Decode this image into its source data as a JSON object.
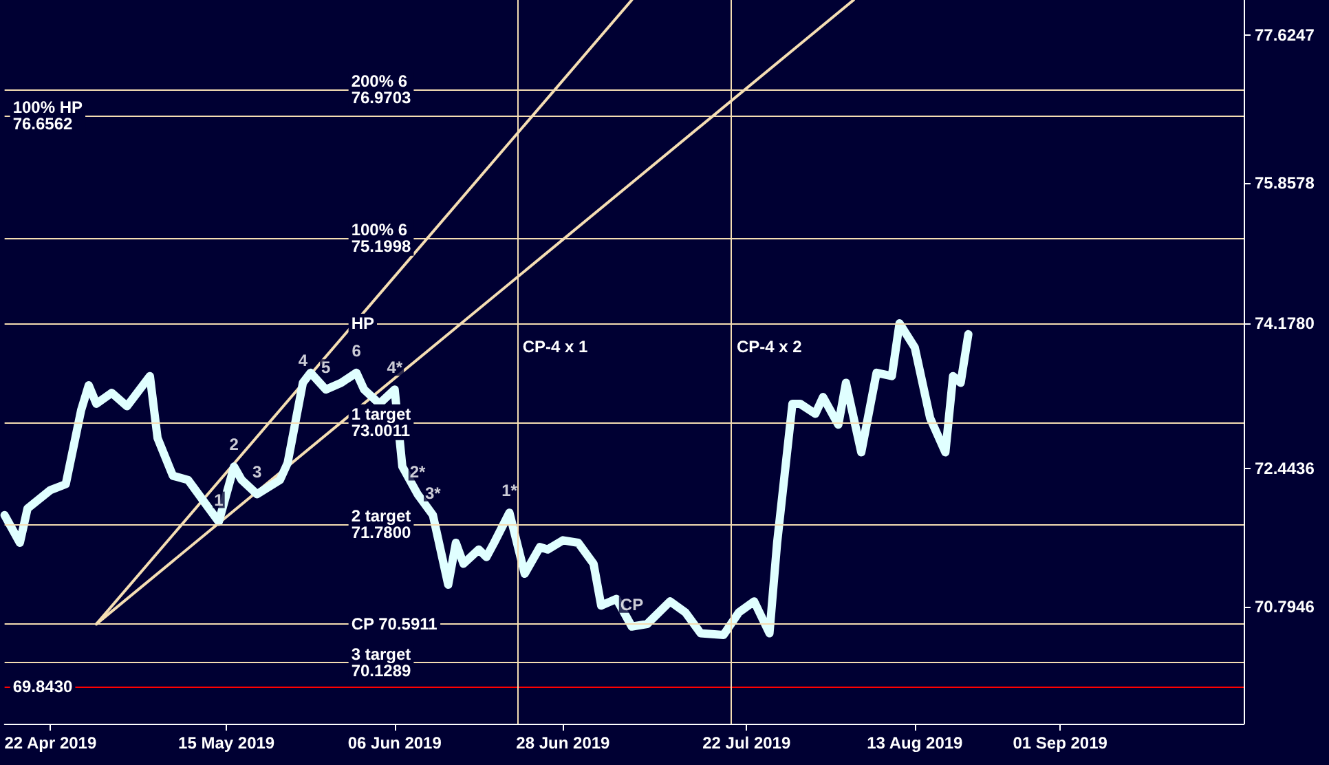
{
  "chart_data": {
    "type": "line",
    "xlim": [
      "2019-04-16",
      "2019-09-25"
    ],
    "xticks": [
      {
        "value": "2019-04-22",
        "label": "22 Apr 2019"
      },
      {
        "value": "2019-05-15",
        "label": "15 May 2019"
      },
      {
        "value": "2019-06-06",
        "label": "06 Jun 2019"
      },
      {
        "value": "2019-06-28",
        "label": "28 Jun 2019"
      },
      {
        "value": "2019-07-22",
        "label": "22 Jul 2019"
      },
      {
        "value": "2019-08-13",
        "label": "13 Aug 2019"
      },
      {
        "value": "2019-09-01",
        "label": "01 Sep 2019"
      }
    ],
    "ylim": [
      69.4,
      78.04
    ],
    "yticks": [
      {
        "value": 70.7946,
        "label": "70.7946"
      },
      {
        "value": 72.4436,
        "label": "72.4436"
      },
      {
        "value": 74.178,
        "label": "74.1780"
      },
      {
        "value": 75.8578,
        "label": "75.8578"
      },
      {
        "value": 77.6247,
        "label": "77.6247"
      }
    ],
    "grid": false,
    "marker": "none",
    "line_style": "solid",
    "series": [
      {
        "color": "#e0ffff",
        "x": [
          "2019-04-16",
          "2019-04-18",
          "2019-04-19",
          "2019-04-22",
          "2019-04-24",
          "2019-04-26",
          "2019-04-27",
          "2019-04-28",
          "2019-04-30",
          "2019-05-02",
          "2019-05-05",
          "2019-05-06",
          "2019-05-08",
          "2019-05-10",
          "2019-05-12",
          "2019-05-14",
          "2019-05-16",
          "2019-05-17",
          "2019-05-19",
          "2019-05-22",
          "2019-05-23",
          "2019-05-25",
          "2019-05-26",
          "2019-05-28",
          "2019-05-30",
          "2019-06-01",
          "2019-06-02",
          "2019-06-04",
          "2019-06-06",
          "2019-06-07",
          "2019-06-09",
          "2019-06-11",
          "2019-06-13",
          "2019-06-14",
          "2019-06-15",
          "2019-06-17",
          "2019-06-18",
          "2019-06-19",
          "2019-06-21",
          "2019-06-23",
          "2019-06-25",
          "2019-06-26",
          "2019-06-28",
          "2019-06-30",
          "2019-07-02",
          "2019-07-03",
          "2019-07-05",
          "2019-07-07",
          "2019-07-09",
          "2019-07-12",
          "2019-07-14",
          "2019-07-16",
          "2019-07-19",
          "2019-07-21",
          "2019-07-23",
          "2019-07-25",
          "2019-07-26",
          "2019-07-28",
          "2019-07-29",
          "2019-07-31",
          "2019-08-01",
          "2019-08-03",
          "2019-08-04",
          "2019-08-06",
          "2019-08-08",
          "2019-08-10",
          "2019-08-11",
          "2019-08-13",
          "2019-08-15",
          "2019-08-17",
          "2019-08-18",
          "2019-08-19",
          "2019-08-20"
        ],
        "values": [
          71.89,
          71.56,
          71.97,
          72.19,
          72.26,
          73.14,
          73.44,
          73.22,
          73.35,
          73.19,
          73.55,
          72.81,
          72.36,
          72.31,
          72.06,
          71.81,
          72.47,
          72.31,
          72.14,
          72.31,
          72.51,
          73.47,
          73.59,
          73.39,
          73.47,
          73.59,
          73.39,
          73.22,
          73.39,
          72.47,
          72.14,
          71.89,
          71.06,
          71.56,
          71.31,
          71.48,
          71.39,
          71.56,
          71.92,
          71.19,
          71.51,
          71.48,
          71.59,
          71.56,
          71.31,
          70.81,
          70.89,
          70.56,
          70.59,
          70.86,
          70.73,
          70.48,
          70.46,
          70.73,
          70.86,
          70.48,
          71.56,
          73.22,
          73.22,
          73.1,
          73.3,
          72.97,
          73.47,
          72.64,
          73.59,
          73.55,
          74.18,
          73.89,
          73.05,
          72.64,
          73.55,
          73.47,
          74.05
        ]
      },
      {
        "color": "#f5deb3",
        "x": [
          "2019-04-28",
          "2019-07-07"
        ],
        "values": [
          70.59,
          78.04
        ]
      },
      {
        "color": "#f5deb3",
        "x": [
          "2019-04-28",
          "2019-08-05"
        ],
        "values": [
          70.59,
          78.04
        ]
      }
    ],
    "ref_lines": [
      {
        "axis": "y",
        "value": 76.9703,
        "label": "200% 6\n76.9703",
        "color": "#f5deb3"
      },
      {
        "axis": "y",
        "value": 76.6562,
        "label": "100% HP\n76.6562",
        "color": "#f5deb3"
      },
      {
        "axis": "y",
        "value": 75.1998,
        "label": "100% 6\n75.1998",
        "color": "#f5deb3"
      },
      {
        "axis": "y",
        "value": 74.178,
        "label": "HP",
        "color": "#f5deb3"
      },
      {
        "axis": "y",
        "value": 73.0011,
        "label": "1 target\n73.0011",
        "color": "#f5deb3"
      },
      {
        "axis": "y",
        "value": 71.78,
        "label": "2 target\n71.7800",
        "color": "#f5deb3"
      },
      {
        "axis": "y",
        "value": 70.5911,
        "label": "CP 70.5911",
        "color": "#f5deb3"
      },
      {
        "axis": "y",
        "value": 70.1289,
        "label": "3 target\n70.1289",
        "color": "#f5deb3"
      },
      {
        "axis": "y",
        "value": 69.843,
        "label": "69.8430",
        "color": "#ff0000"
      },
      {
        "axis": "x",
        "value": "2019-06-22",
        "label": "CP-4 x 1",
        "color": "#f5deb3"
      },
      {
        "axis": "x",
        "value": "2019-07-20",
        "label": "CP-4 x 2",
        "color": "#f5deb3"
      }
    ],
    "annotations": [
      {
        "text": "1",
        "x": "2019-05-14",
        "y": 71.81
      },
      {
        "text": "2",
        "x": "2019-05-16",
        "y": 72.47
      },
      {
        "text": "3",
        "x": "2019-05-19",
        "y": 72.14
      },
      {
        "text": "4",
        "x": "2019-05-25",
        "y": 73.47
      },
      {
        "text": "5",
        "x": "2019-05-28",
        "y": 73.39
      },
      {
        "text": "6",
        "x": "2019-06-01",
        "y": 73.59
      },
      {
        "text": "4*",
        "x": "2019-06-06",
        "y": 73.39
      },
      {
        "text": "2*",
        "x": "2019-06-09",
        "y": 72.14
      },
      {
        "text": "3*",
        "x": "2019-06-11",
        "y": 71.89
      },
      {
        "text": "1*",
        "x": "2019-06-21",
        "y": 71.92
      },
      {
        "text": "CP",
        "x": "2019-07-07",
        "y": 70.56
      }
    ]
  }
}
